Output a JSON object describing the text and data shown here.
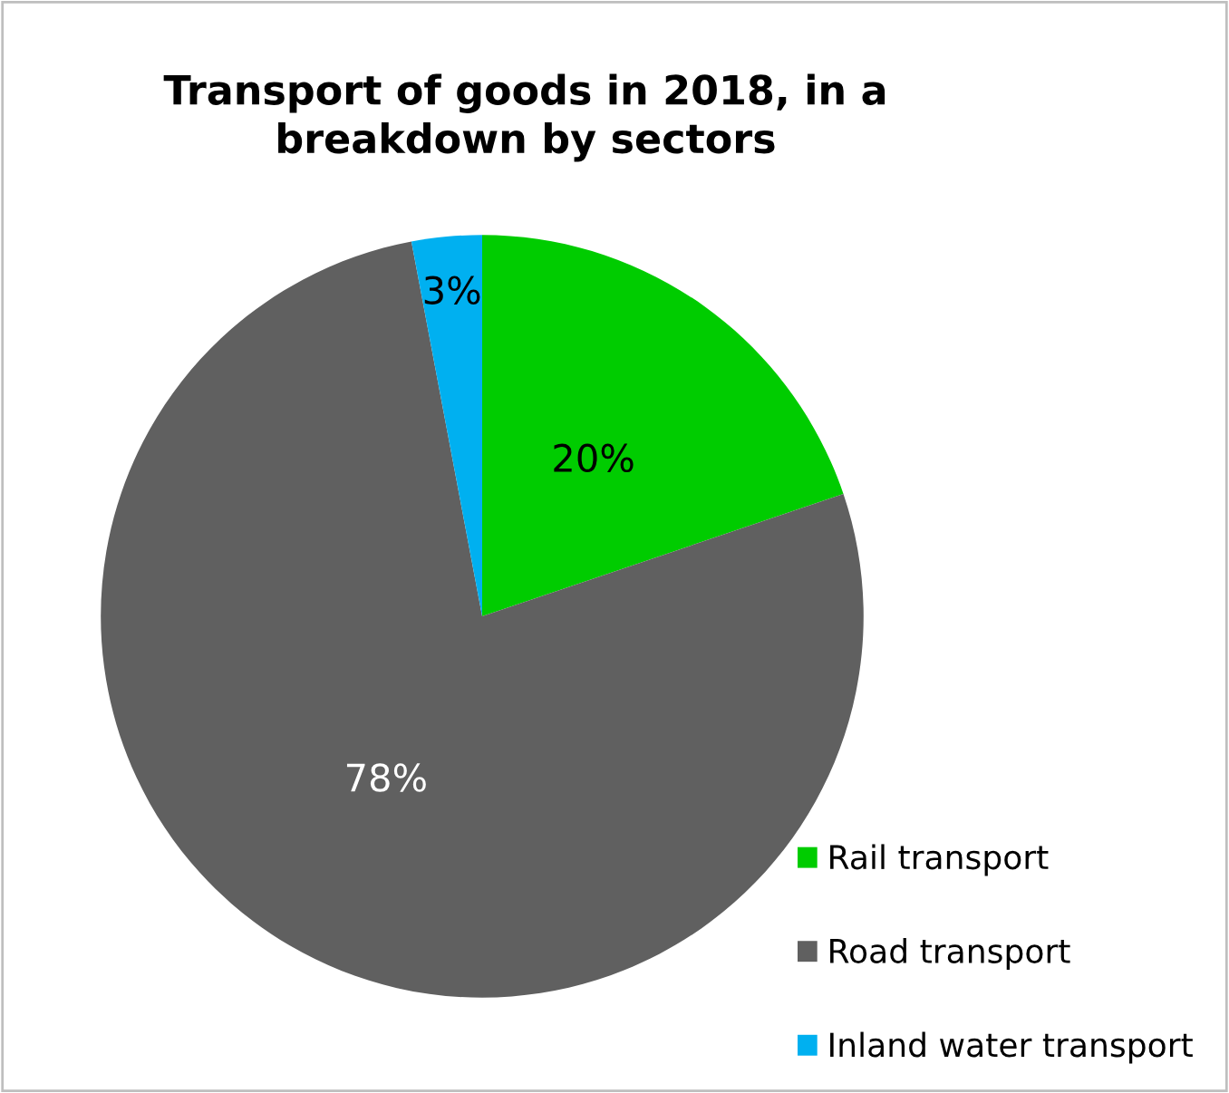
{
  "chart_data": {
    "type": "pie",
    "title": "Transport of goods in 2018, in a\nbreakdown by sectors",
    "categories": [
      "Rail transport",
      "Road transport",
      "Inland water transport"
    ],
    "values": [
      20,
      78,
      3
    ],
    "colors": [
      "#00cc00",
      "#606060",
      "#00b0f0"
    ],
    "value_labels": [
      "20%",
      "78%",
      "3%"
    ],
    "legend": "bottom right"
  }
}
